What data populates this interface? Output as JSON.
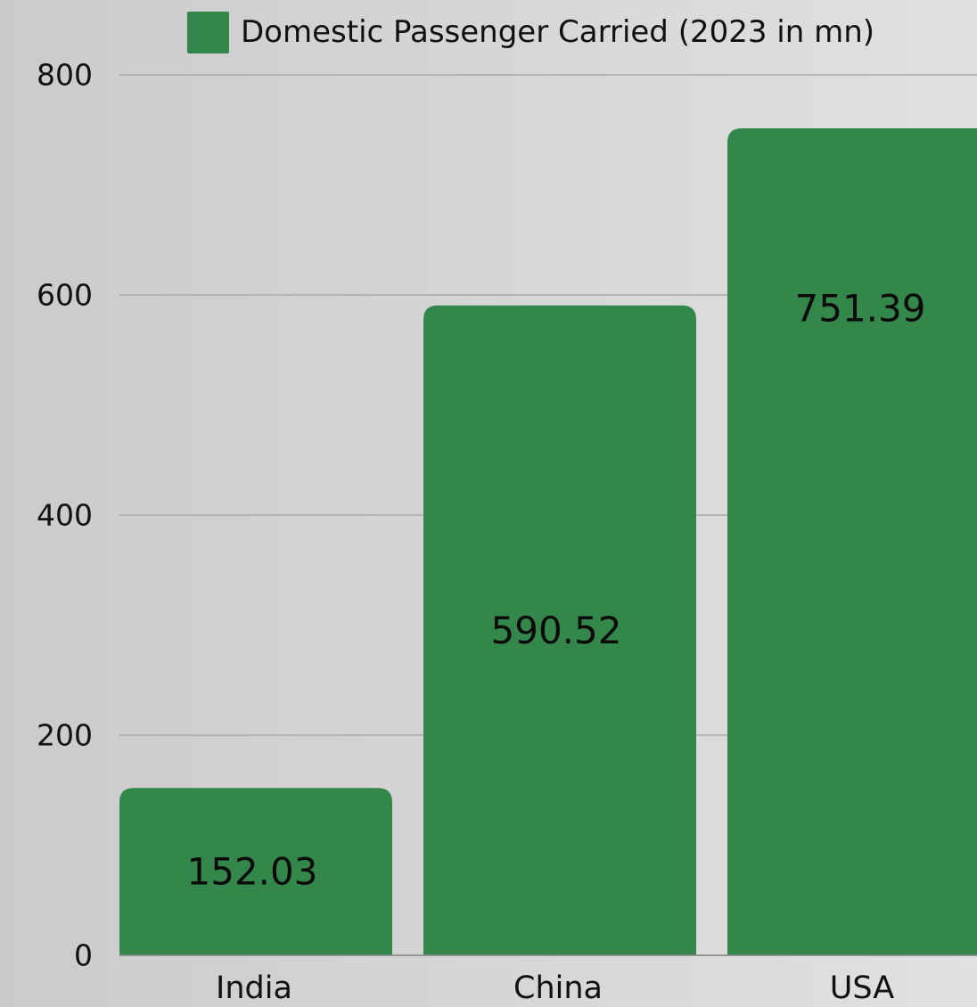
{
  "chart_data": {
    "type": "bar",
    "categories": [
      "India",
      "China",
      "USA"
    ],
    "series": [
      {
        "name": "Domestic Passenger Carried (2023 in mn)",
        "values": [
          152.03,
          590.52,
          751.39
        ],
        "data_labels": [
          "152.03",
          "590.52",
          "751.39"
        ]
      }
    ],
    "yticks": [
      "0",
      "200",
      "400",
      "600",
      "800"
    ],
    "ylim": [
      0,
      800
    ],
    "grid": true,
    "legend_position": "top",
    "bar_color": "#33874a",
    "gridline_color": "#a9a9a9"
  }
}
